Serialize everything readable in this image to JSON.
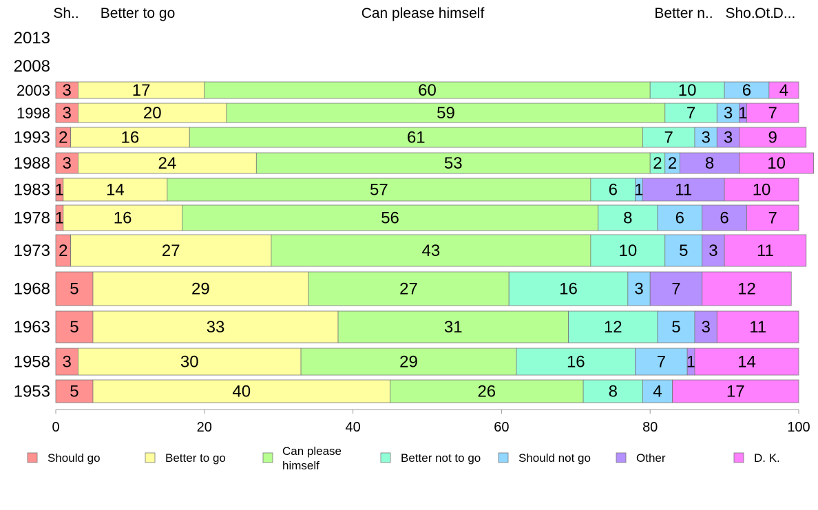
{
  "chart_data": {
    "type": "bar",
    "orientation": "horizontal",
    "stacked": true,
    "title": "",
    "xlabel": "",
    "ylabel": "",
    "xlim": [
      0,
      100
    ],
    "x_ticks": [
      "0",
      "20",
      "40",
      "60",
      "80",
      "100"
    ],
    "grid": false,
    "legend_position": "bottom",
    "categories": [
      "2013",
      "2008",
      "2003",
      "1998",
      "1993",
      "1988",
      "1983",
      "1978",
      "1973",
      "1968",
      "1963",
      "1958",
      "1953"
    ],
    "top_labels": [
      "Sh..",
      "Better to go",
      "Can please himself",
      "Better n..",
      "Sho..",
      "Ot..",
      "D..."
    ],
    "series": [
      {
        "name": "Should go",
        "legend_lines": [
          "Should go"
        ],
        "color": "#ff9191",
        "values": [
          null,
          null,
          3,
          3,
          2,
          3,
          1,
          1,
          2,
          5,
          5,
          3,
          5
        ]
      },
      {
        "name": "Better to go",
        "legend_lines": [
          "Better to go"
        ],
        "color": "#ffff9f",
        "values": [
          null,
          null,
          17,
          20,
          16,
          24,
          14,
          16,
          27,
          29,
          33,
          30,
          40
        ]
      },
      {
        "name": "Can please himself",
        "legend_lines": [
          "Can please",
          "himself"
        ],
        "color": "#b8ff91",
        "values": [
          null,
          null,
          60,
          59,
          61,
          53,
          57,
          56,
          43,
          27,
          31,
          29,
          26
        ]
      },
      {
        "name": "Better not to go",
        "legend_lines": [
          "Better not to go"
        ],
        "color": "#91ffd6",
        "values": [
          null,
          null,
          10,
          7,
          7,
          2,
          6,
          8,
          10,
          16,
          12,
          16,
          8
        ]
      },
      {
        "name": "Should not go",
        "legend_lines": [
          "Should not go"
        ],
        "color": "#91d7ff",
        "values": [
          null,
          null,
          6,
          3,
          3,
          2,
          1,
          6,
          5,
          3,
          5,
          7,
          4
        ]
      },
      {
        "name": "Other",
        "legend_lines": [
          "Other"
        ],
        "color": "#b591ff",
        "values": [
          null,
          null,
          0,
          1,
          3,
          8,
          11,
          6,
          3,
          7,
          3,
          1,
          0
        ]
      },
      {
        "name": "D. K.",
        "legend_lines": [
          "D. K."
        ],
        "color": "#ff80ff",
        "values": [
          null,
          null,
          4,
          7,
          9,
          10,
          10,
          7,
          11,
          12,
          11,
          14,
          17
        ]
      }
    ]
  }
}
